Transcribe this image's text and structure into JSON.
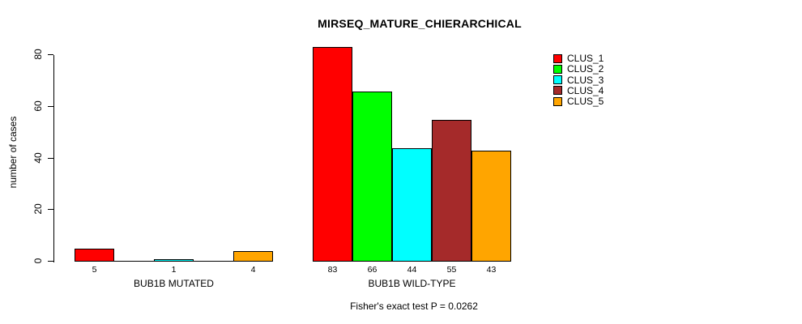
{
  "chart_data": {
    "type": "bar",
    "title": "MIRSEQ_MATURE_CHIERARCHICAL",
    "ylabel": "number of cases",
    "subtitle": "Fisher's exact test P = 0.0262",
    "ylim": [
      0,
      83
    ],
    "yticks": [
      0,
      20,
      40,
      60,
      80
    ],
    "grid": false,
    "legend_position": "top-right",
    "categories": [
      "BUB1B MUTATED",
      "BUB1B WILD-TYPE"
    ],
    "series": [
      {
        "name": "CLUS_1",
        "color": "#FF0000",
        "values": [
          5,
          83
        ]
      },
      {
        "name": "CLUS_2",
        "color": "#00FF00",
        "values": [
          0,
          66
        ]
      },
      {
        "name": "CLUS_3",
        "color": "#00FFFF",
        "values": [
          1,
          44
        ]
      },
      {
        "name": "CLUS_4",
        "color": "#A52A2A",
        "values": [
          0,
          55
        ]
      },
      {
        "name": "CLUS_5",
        "color": "#FFA500",
        "values": [
          4,
          43
        ]
      }
    ],
    "bar_value_labels": [
      [
        "5",
        "",
        "1",
        "",
        "4"
      ],
      [
        "83",
        "66",
        "44",
        "55",
        "43"
      ]
    ]
  }
}
